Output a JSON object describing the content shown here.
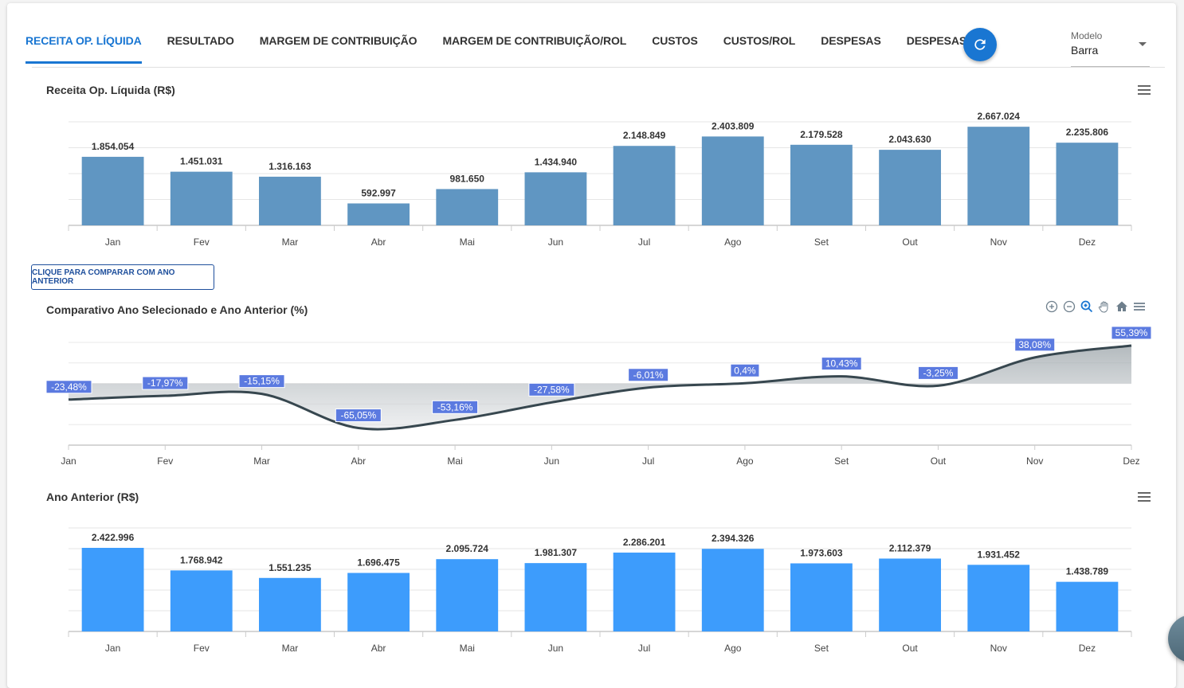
{
  "tabs": [
    {
      "label": "RECEITA OP. LÍQUIDA",
      "active": true
    },
    {
      "label": "RESULTADO",
      "active": false
    },
    {
      "label": "MARGEM DE CONTRIBUIÇÃO",
      "active": false
    },
    {
      "label": "MARGEM DE CONTRIBUIÇÃO/ROL",
      "active": false
    },
    {
      "label": "CUSTOS",
      "active": false
    },
    {
      "label": "CUSTOS/ROL",
      "active": false
    },
    {
      "label": "DESPESAS",
      "active": false
    },
    {
      "label": "DESPESAS/ROL",
      "active": false
    }
  ],
  "toolbar": {
    "refresh_icon": "refresh-icon"
  },
  "modelo": {
    "label": "Modelo",
    "value": "Barra"
  },
  "compare_button": {
    "label": "CLIQUE PARA COMPARAR COM ANO ANTERIOR"
  },
  "colors": {
    "accent": "#1976d2",
    "bar_current": "#6096c2",
    "bar_previous": "#3d9cfc",
    "line": "#37474f",
    "data_label_bg": "#5b7ae0"
  },
  "chart_data": [
    {
      "type": "bar",
      "title": "Receita Op. Líquida (R$)",
      "categories": [
        "Jan",
        "Fev",
        "Mar",
        "Abr",
        "Mai",
        "Jun",
        "Jul",
        "Ago",
        "Set",
        "Out",
        "Nov",
        "Dez"
      ],
      "values": [
        1854054,
        1451031,
        1316163,
        592997,
        981650,
        1434940,
        2148849,
        2403809,
        2179528,
        2043630,
        2667024,
        2235806
      ],
      "labels": [
        "1.854.054",
        "1.451.031",
        "1.316.163",
        "592.997",
        "981.650",
        "1.434.940",
        "2.148.849",
        "2.403.809",
        "2.179.528",
        "2.043.630",
        "2.667.024",
        "2.235.806"
      ],
      "xlabel": "",
      "ylabel": "",
      "ylim": [
        0,
        2800000
      ],
      "ytick_step": 700000,
      "grid": true,
      "legend": "none"
    },
    {
      "type": "area",
      "title": "Comparativo Ano Selecionado e Ano Anterior (%)",
      "categories": [
        "Jan",
        "Fev",
        "Mar",
        "Abr",
        "Mai",
        "Jun",
        "Jul",
        "Ago",
        "Set",
        "Out",
        "Nov",
        "Dez"
      ],
      "values": [
        -23.48,
        -17.97,
        -15.15,
        -65.05,
        -53.16,
        -27.58,
        -6.01,
        0.4,
        10.43,
        -3.25,
        38.08,
        55.39
      ],
      "labels": [
        "-23,48%",
        "-17,97%",
        "-15,15%",
        "-65,05%",
        "-53,16%",
        "-27,58%",
        "-6,01%",
        "0,4%",
        "10,43%",
        "-3,25%",
        "38,08%",
        "55,39%"
      ],
      "xlabel": "",
      "ylabel": "",
      "ylim": [
        -90,
        60
      ],
      "ytick_step": 30,
      "grid": true,
      "legend": "none",
      "tools": [
        "zoom-in-icon",
        "zoom-out-icon",
        "selection-zoom-icon",
        "pan-hand-icon",
        "reset-home-icon",
        "menu-icon"
      ]
    },
    {
      "type": "bar",
      "title": "Ano Anterior (R$)",
      "categories": [
        "Jan",
        "Fev",
        "Mar",
        "Abr",
        "Mai",
        "Jun",
        "Jul",
        "Ago",
        "Set",
        "Out",
        "Nov",
        "Dez"
      ],
      "values": [
        2422996,
        1768942,
        1551235,
        1696475,
        2095724,
        1981307,
        2286201,
        2394326,
        1973603,
        2112379,
        1931452,
        1438789
      ],
      "labels": [
        "2.422.996",
        "1.768.942",
        "1.551.235",
        "1.696.475",
        "2.095.724",
        "1.981.307",
        "2.286.201",
        "2.394.326",
        "1.973.603",
        "2.112.379",
        "1.931.452",
        "1.438.789"
      ],
      "xlabel": "",
      "ylabel": "",
      "ylim": [
        0,
        3000000
      ],
      "ytick_step": 600000,
      "grid": true,
      "legend": "none"
    }
  ]
}
